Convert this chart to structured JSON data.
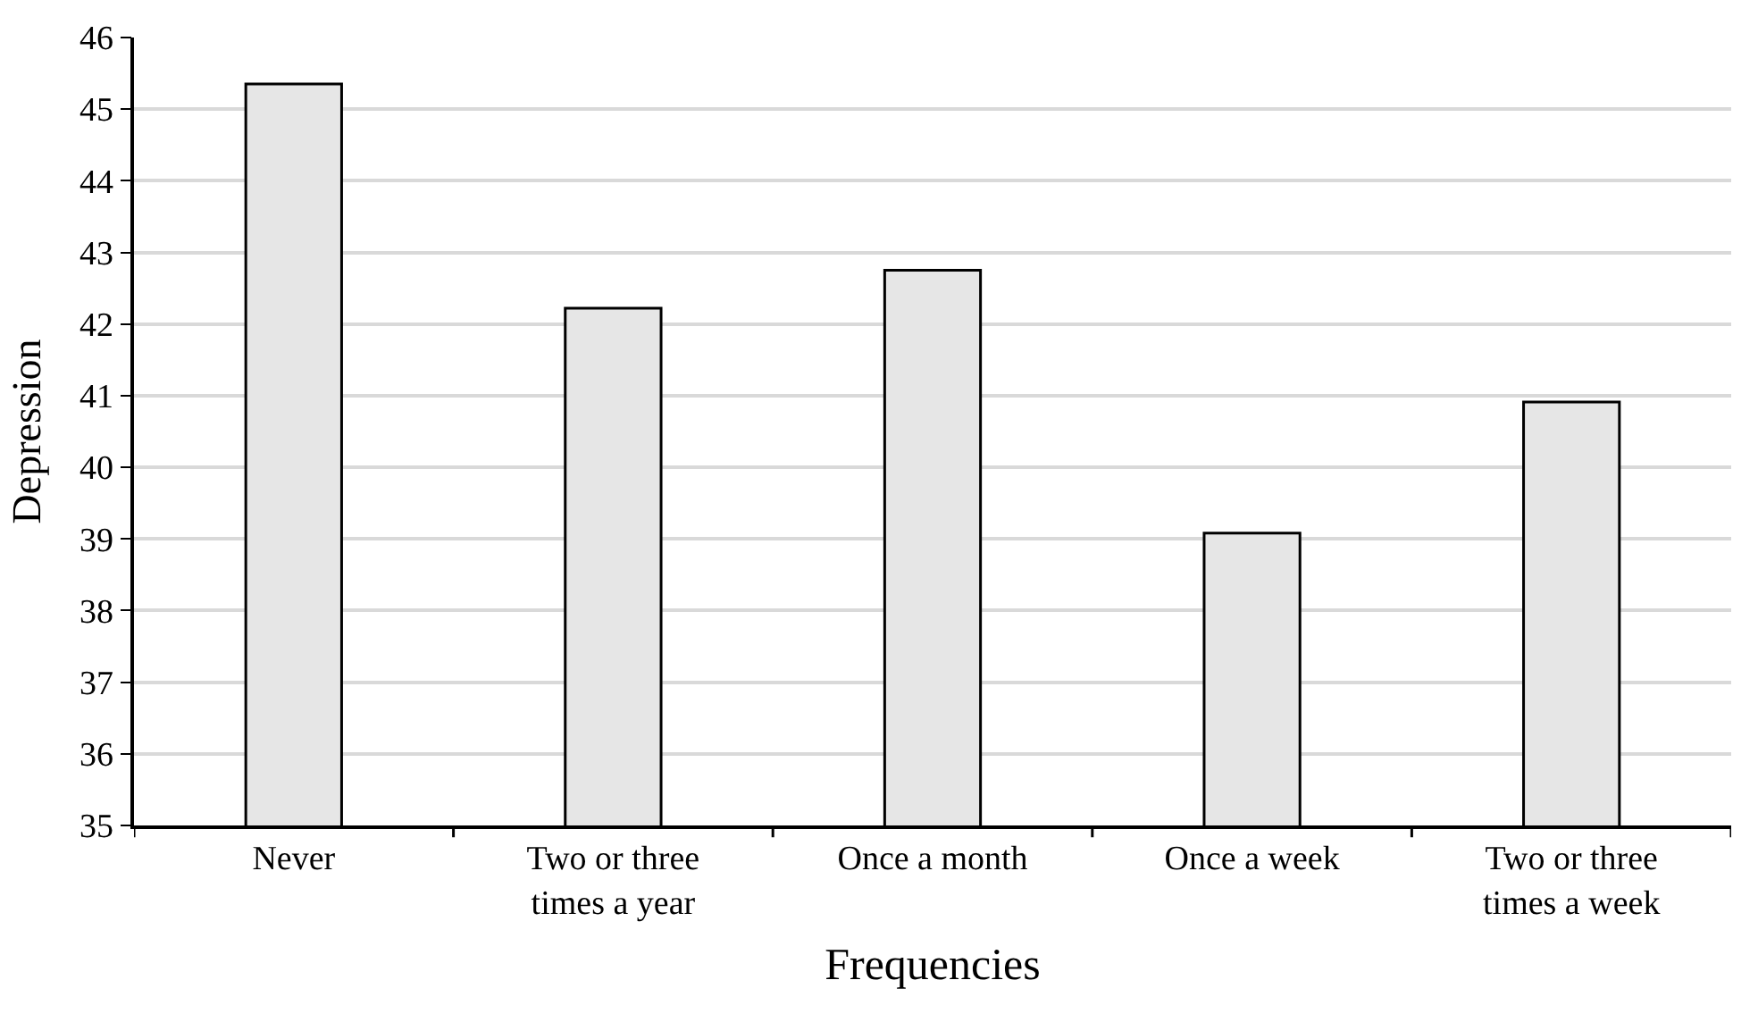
{
  "chart_data": {
    "type": "bar",
    "xlabel": "Frequencies",
    "ylabel": "Depression",
    "categories": [
      "Never",
      "Two or three times a year",
      "Once a month",
      "Once a week",
      "Two or three times a week"
    ],
    "values": [
      45.35,
      42.22,
      42.75,
      39.08,
      40.91
    ],
    "color": "#e6e6e6",
    "ylim": [
      35,
      46
    ],
    "yticks": [
      35,
      36,
      37,
      38,
      39,
      40,
      41,
      42,
      43,
      44,
      45,
      46
    ],
    "grid": "y"
  }
}
